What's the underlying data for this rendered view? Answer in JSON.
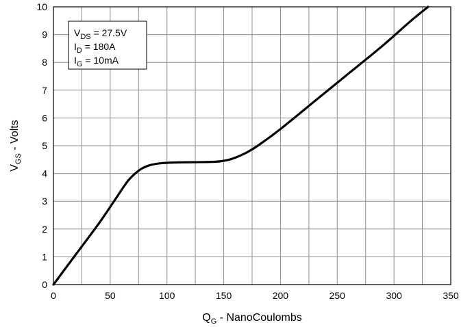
{
  "chart_data": {
    "type": "line",
    "xlabel": {
      "main": "Q",
      "sub": "G",
      "rest": " - NanoCoulombs"
    },
    "ylabel": {
      "main": "V",
      "sub": "GS",
      "rest": " - Volts"
    },
    "xlim": [
      0,
      350
    ],
    "ylim": [
      0,
      10
    ],
    "xticks": [
      0,
      50,
      100,
      150,
      200,
      250,
      300,
      350
    ],
    "yticks": [
      0,
      1,
      2,
      3,
      4,
      5,
      6,
      7,
      8,
      9,
      10
    ],
    "x_minor_step": 25,
    "grid": true,
    "annotation_lines": [
      {
        "main": "V",
        "sub": "DS",
        "rest": " = 27.5V"
      },
      {
        "main": "I",
        "sub": "D",
        "rest": " = 180A"
      },
      {
        "main": "I",
        "sub": "G",
        "rest": " = 10mA"
      }
    ],
    "annotation_position": "top-left",
    "series": [
      {
        "color": "#000000",
        "x": [
          0,
          20,
          40,
          55,
          65,
          72,
          78,
          85,
          95,
          110,
          130,
          145,
          155,
          162,
          170,
          180,
          200,
          230,
          260,
          290,
          315,
          330
        ],
        "y": [
          0,
          1.1,
          2.2,
          3.1,
          3.7,
          4.0,
          4.18,
          4.3,
          4.37,
          4.4,
          4.41,
          4.43,
          4.5,
          4.6,
          4.75,
          5.0,
          5.6,
          6.6,
          7.6,
          8.6,
          9.5,
          10.0
        ]
      }
    ]
  }
}
